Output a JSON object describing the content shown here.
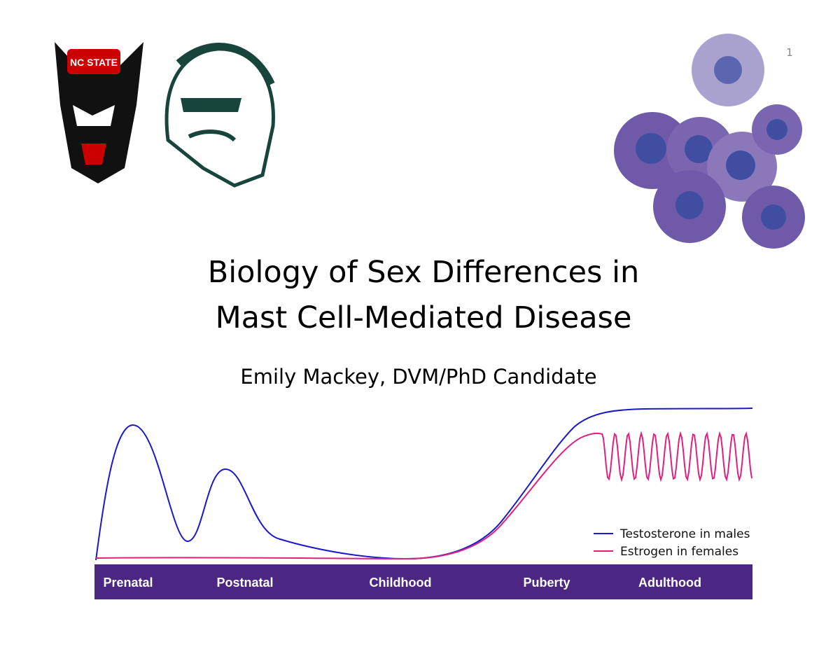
{
  "slide": {
    "page_number": "1",
    "logo_text": "NC STATE",
    "title_lines": [
      "Biology of Sex Differences in",
      "Mast Cell-Mediated Disease"
    ],
    "subtitle": "Emily Mackey, DVM/PhD Candidate",
    "stages": [
      "Prenatal",
      "Postnatal",
      "Childhood",
      "Puberty",
      "Adulthood"
    ],
    "legend": [
      {
        "name": "Testosterone in males",
        "color": "#1a1ac8"
      },
      {
        "name": "Estrogen in females",
        "color": "#e0207e"
      }
    ]
  }
}
